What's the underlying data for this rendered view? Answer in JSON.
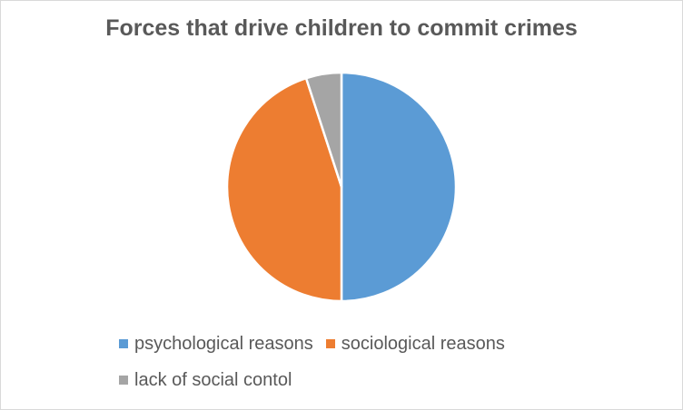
{
  "chart_data": {
    "type": "pie",
    "title": "Forces that drive children to commit crimes",
    "categories": [
      "psychological reasons",
      "sociological reasons",
      "lack of social contol"
    ],
    "values": [
      50,
      45,
      5
    ],
    "colors": [
      "#5b9bd5",
      "#ed7d31",
      "#a5a5a5"
    ],
    "start_angle": "12 o'clock",
    "direction": "clockwise",
    "legend_position": "bottom"
  }
}
